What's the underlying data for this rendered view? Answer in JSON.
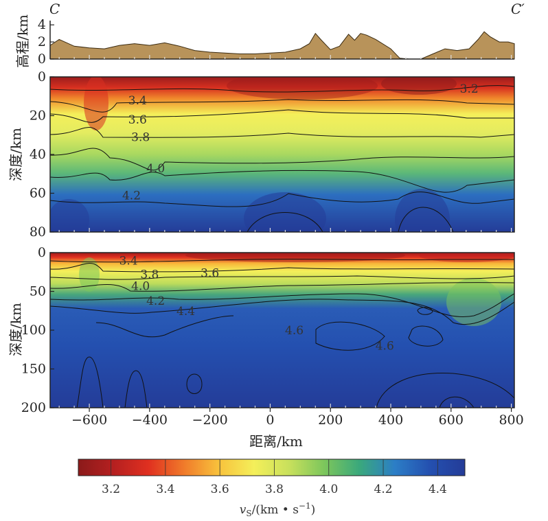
{
  "chart_data": {
    "type": "heatmap",
    "profile": {
      "start_label": "C",
      "end_label": "C′"
    },
    "x_axis": {
      "label": "距离/km",
      "range": [
        -730,
        810
      ],
      "ticks": [
        -600,
        -400,
        -200,
        0,
        200,
        400,
        600,
        800
      ],
      "tick_labels": [
        "−600",
        "−400",
        "−200",
        "0",
        "200",
        "400",
        "600",
        "800"
      ]
    },
    "elevation_panel": {
      "ylabel": "高程/km",
      "ylim": [
        0,
        4.5
      ],
      "ticks": [
        0,
        2,
        4
      ],
      "tick_labels": [
        "0",
        "2",
        "4"
      ],
      "fill_color": "#b8935a",
      "x": [
        -730,
        -700,
        -650,
        -600,
        -550,
        -500,
        -450,
        -400,
        -350,
        -300,
        -250,
        -200,
        -150,
        -100,
        -50,
        0,
        50,
        100,
        130,
        150,
        170,
        200,
        230,
        260,
        280,
        300,
        320,
        350,
        400,
        430,
        460,
        500,
        540,
        580,
        620,
        660,
        690,
        710,
        730,
        760,
        790,
        810
      ],
      "elevation": [
        1.6,
        2.3,
        1.5,
        1.3,
        1.2,
        1.6,
        1.8,
        1.6,
        1.9,
        1.5,
        1.0,
        0.8,
        0.7,
        0.6,
        0.6,
        0.7,
        0.8,
        1.2,
        1.8,
        3.0,
        2.2,
        1.1,
        1.5,
        2.9,
        2.2,
        3.0,
        2.8,
        2.3,
        1.2,
        0.1,
        0,
        0,
        0.6,
        1.2,
        1.0,
        1.2,
        2.3,
        3.2,
        2.6,
        2.0,
        2.0,
        1.8
      ]
    },
    "shallow_panel": {
      "ylabel": "深度/km",
      "ylim": [
        0,
        80
      ],
      "ticks": [
        0,
        20,
        40,
        60,
        80
      ],
      "tick_labels": [
        "0",
        "20",
        "40",
        "60",
        "80"
      ],
      "contour_labels": [
        {
          "text": "3.2",
          "x": 660,
          "z": 6
        },
        {
          "text": "3.4",
          "x": -440,
          "z": 12
        },
        {
          "text": "3.6",
          "x": -440,
          "z": 22
        },
        {
          "text": "3.8",
          "x": -430,
          "z": 31
        },
        {
          "text": "4.0",
          "x": -380,
          "z": 47
        },
        {
          "text": "4.2",
          "x": -460,
          "z": 61
        }
      ]
    },
    "deep_panel": {
      "ylabel": "深度/km",
      "ylim": [
        0,
        200
      ],
      "ticks": [
        0,
        50,
        100,
        150,
        200
      ],
      "tick_labels": [
        "0",
        "50",
        "100",
        "150",
        "200"
      ],
      "contour_labels": [
        {
          "text": "3.4",
          "x": -470,
          "z": 10
        },
        {
          "text": "3.6",
          "x": -200,
          "z": 26
        },
        {
          "text": "3.8",
          "x": -400,
          "z": 28
        },
        {
          "text": "4.0",
          "x": -430,
          "z": 43
        },
        {
          "text": "4.2",
          "x": -380,
          "z": 62
        },
        {
          "text": "4.4",
          "x": -280,
          "z": 75
        },
        {
          "text": "4.6",
          "x": 80,
          "z": 100
        },
        {
          "text": "4.6",
          "x": 380,
          "z": 120
        }
      ]
    },
    "colorbar": {
      "label_main": "v",
      "label_sub": "S",
      "label_units": "/(km • s",
      "label_exp": "−1",
      "label_close": ")",
      "range": [
        3.08,
        4.5
      ],
      "ticks": [
        3.2,
        3.4,
        3.6,
        3.8,
        4.0,
        4.2,
        4.4
      ],
      "tick_labels": [
        "3.2",
        "3.4",
        "3.6",
        "3.8",
        "4.0",
        "4.2",
        "4.4"
      ],
      "stops": [
        "#8b1a1a",
        "#b52020",
        "#e03020",
        "#f07a2a",
        "#f8c23c",
        "#f4ef5a",
        "#c8e05c",
        "#7cc65c",
        "#3aa87c",
        "#2c7ec6",
        "#2450b0",
        "#243c98"
      ]
    }
  }
}
